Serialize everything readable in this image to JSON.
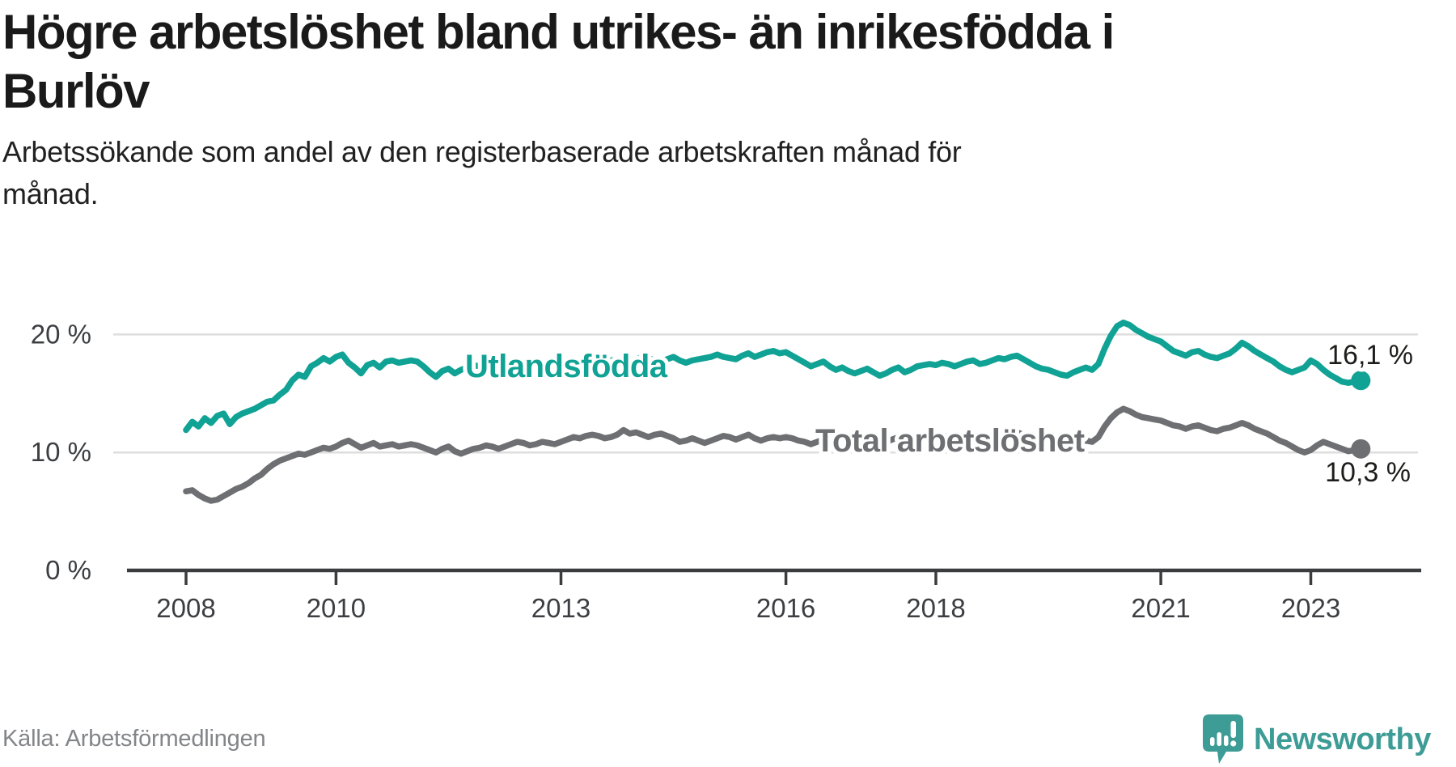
{
  "header": {
    "title_lines": [
      "Högre arbetslöshet bland utrikes- än inrikesfödda i",
      "Burlöv"
    ],
    "subtitle_lines": [
      "Arbetssökande som andel av den registerbaserade arbetskraften månad för",
      "månad."
    ]
  },
  "footer": {
    "source": "Källa: Arbetsförmedlingen",
    "brand": "Newsworthy"
  },
  "colors": {
    "teal": "#10a294",
    "gray": "#6e6f72",
    "grid": "#dedede",
    "axis": "#3b3c3e",
    "text": "#1d1d1b",
    "tick_text": "#3c3e41",
    "muted": "#838588",
    "brand_teal": "#3d9c95"
  },
  "chart_data": {
    "type": "line",
    "title": "Högre arbetslöshet bland utrikes- än inrikesfödda i Burlöv",
    "subtitle": "Arbetssökande som andel av den registerbaserade arbetskraften månad för månad.",
    "x_unit": "month",
    "x_start": {
      "year": 2008,
      "month": 1
    },
    "x_end": {
      "year": 2023,
      "month": 9
    },
    "x_ticks": [
      2008,
      2010,
      2013,
      2016,
      2018,
      2021,
      2023
    ],
    "y_ticks": [
      {
        "value": 0,
        "label": "0 %"
      },
      {
        "value": 10,
        "label": "10 %"
      },
      {
        "value": 20,
        "label": "20 %"
      }
    ],
    "ylim": [
      0,
      22
    ],
    "grid": "horizontal",
    "legend_position": "inline-on-line",
    "series": [
      {
        "name": "Utlandsfödda",
        "color": "#10a294",
        "end_label": "16,1 %",
        "last_value": 16.1,
        "values": [
          11.9,
          12.6,
          12.2,
          12.9,
          12.5,
          13.1,
          13.3,
          12.4,
          13.0,
          13.3,
          13.5,
          13.7,
          14.0,
          14.3,
          14.4,
          14.9,
          15.3,
          16.1,
          16.6,
          16.4,
          17.3,
          17.6,
          18.0,
          17.7,
          18.1,
          18.3,
          17.6,
          17.2,
          16.7,
          17.4,
          17.6,
          17.2,
          17.7,
          17.8,
          17.6,
          17.7,
          17.8,
          17.7,
          17.3,
          16.8,
          16.4,
          16.9,
          17.1,
          16.7,
          17.0,
          17.2,
          17.4,
          17.3,
          17.5,
          17.3,
          17.0,
          17.2,
          17.4,
          17.6,
          17.5,
          17.3,
          17.4,
          17.6,
          17.5,
          17.4,
          17.3,
          17.5,
          17.7,
          17.6,
          17.8,
          18.0,
          17.9,
          17.7,
          17.8,
          17.9,
          18.0,
          17.8,
          17.9,
          18.1,
          18.0,
          17.8,
          17.7,
          17.9,
          18.1,
          17.8,
          17.6,
          17.8,
          17.9,
          18.0,
          18.1,
          18.3,
          18.1,
          18.0,
          17.9,
          18.2,
          18.4,
          18.1,
          18.3,
          18.5,
          18.6,
          18.4,
          18.5,
          18.2,
          17.9,
          17.6,
          17.3,
          17.5,
          17.7,
          17.3,
          17.0,
          17.2,
          16.9,
          16.7,
          16.9,
          17.1,
          16.8,
          16.5,
          16.7,
          17.0,
          17.2,
          16.8,
          17.0,
          17.3,
          17.4,
          17.5,
          17.4,
          17.6,
          17.5,
          17.3,
          17.5,
          17.7,
          17.8,
          17.5,
          17.6,
          17.8,
          18.0,
          17.9,
          18.1,
          18.2,
          17.9,
          17.6,
          17.3,
          17.1,
          17.0,
          16.8,
          16.6,
          16.5,
          16.8,
          17.0,
          17.2,
          17.0,
          17.5,
          18.8,
          19.9,
          20.7,
          21.0,
          20.8,
          20.4,
          20.1,
          19.8,
          19.6,
          19.4,
          19.0,
          18.6,
          18.4,
          18.2,
          18.5,
          18.6,
          18.3,
          18.1,
          18.0,
          18.2,
          18.4,
          18.8,
          19.3,
          19.0,
          18.6,
          18.3,
          18.0,
          17.7,
          17.3,
          17.0,
          16.8,
          17.0,
          17.2,
          17.8,
          17.5,
          17.0,
          16.6,
          16.3,
          16.0,
          15.9,
          16.0,
          16.1
        ]
      },
      {
        "name": "Total arbetslöshet",
        "color": "#6e6f72",
        "end_label": "10,3 %",
        "last_value": 10.3,
        "values": [
          6.7,
          6.8,
          6.4,
          6.1,
          5.9,
          6.0,
          6.3,
          6.6,
          6.9,
          7.1,
          7.4,
          7.8,
          8.1,
          8.6,
          9.0,
          9.3,
          9.5,
          9.7,
          9.9,
          9.8,
          10.0,
          10.2,
          10.4,
          10.3,
          10.5,
          10.8,
          11.0,
          10.7,
          10.4,
          10.6,
          10.8,
          10.5,
          10.6,
          10.7,
          10.5,
          10.6,
          10.7,
          10.6,
          10.4,
          10.2,
          10.0,
          10.3,
          10.5,
          10.1,
          9.9,
          10.1,
          10.3,
          10.4,
          10.6,
          10.5,
          10.3,
          10.5,
          10.7,
          10.9,
          10.8,
          10.6,
          10.7,
          10.9,
          10.8,
          10.7,
          10.9,
          11.1,
          11.3,
          11.2,
          11.4,
          11.5,
          11.4,
          11.2,
          11.3,
          11.5,
          11.9,
          11.6,
          11.7,
          11.5,
          11.3,
          11.5,
          11.6,
          11.4,
          11.2,
          10.9,
          11.0,
          11.2,
          11.0,
          10.8,
          11.0,
          11.2,
          11.4,
          11.3,
          11.1,
          11.3,
          11.5,
          11.2,
          11.0,
          11.2,
          11.3,
          11.2,
          11.3,
          11.2,
          11.0,
          10.9,
          10.7,
          10.9,
          11.1,
          10.8,
          10.6,
          10.8,
          10.9,
          11.0,
          11.1,
          11.2,
          11.0,
          10.8,
          10.9,
          11.1,
          11.3,
          11.0,
          11.1,
          11.3,
          11.4,
          11.5,
          11.4,
          11.5,
          11.3,
          11.2,
          11.3,
          11.5,
          11.6,
          11.3,
          11.4,
          11.5,
          11.7,
          11.6,
          11.8,
          11.7,
          11.5,
          11.3,
          11.1,
          11.0,
          10.9,
          10.7,
          10.6,
          10.5,
          10.7,
          10.8,
          11.0,
          10.9,
          11.3,
          12.2,
          12.9,
          13.4,
          13.7,
          13.5,
          13.2,
          13.0,
          12.9,
          12.8,
          12.7,
          12.5,
          12.3,
          12.2,
          12.0,
          12.2,
          12.3,
          12.1,
          11.9,
          11.8,
          12.0,
          12.1,
          12.3,
          12.5,
          12.3,
          12.0,
          11.8,
          11.6,
          11.3,
          11.0,
          10.8,
          10.5,
          10.2,
          10.0,
          10.2,
          10.6,
          10.9,
          10.7,
          10.5,
          10.3,
          10.1,
          10.2,
          10.3
        ]
      }
    ]
  }
}
